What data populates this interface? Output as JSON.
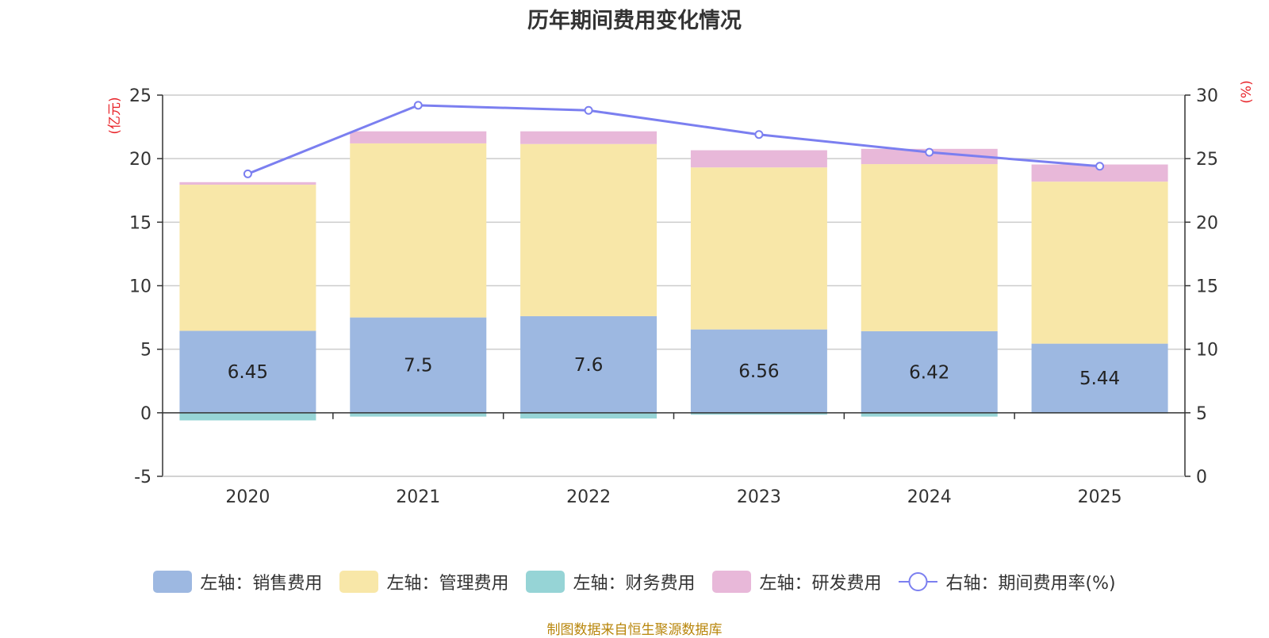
{
  "title": "历年期间费用变化情况",
  "footer": "制图数据来自恒生聚源数据库",
  "chart_data": {
    "type": "bar",
    "stacked": true,
    "categories": [
      "2020",
      "2021",
      "2022",
      "2023",
      "2024",
      "2025"
    ],
    "left_axis": {
      "label": "(亿元)",
      "ylim": [
        -5,
        25
      ],
      "ticks": [
        -5,
        0,
        5,
        10,
        15,
        20,
        25
      ]
    },
    "right_axis": {
      "label": "(%)",
      "ylim": [
        0,
        30
      ],
      "ticks": [
        0,
        5,
        10,
        15,
        20,
        25,
        30
      ]
    },
    "series": [
      {
        "name": "左轴：销售费用",
        "axis": "left",
        "color": "#9db8e1",
        "values": [
          6.45,
          7.5,
          7.6,
          6.56,
          6.42,
          5.44
        ],
        "show_labels": true
      },
      {
        "name": "左轴：管理费用",
        "axis": "left",
        "color": "#f8e7a8",
        "values": [
          11.5,
          13.7,
          13.55,
          12.75,
          13.15,
          12.75
        ]
      },
      {
        "name": "左轴：财务费用",
        "axis": "left",
        "color": "#96d4d6",
        "values": [
          -0.6,
          -0.3,
          -0.45,
          -0.15,
          -0.3,
          -0.05
        ]
      },
      {
        "name": "左轴：研发费用",
        "axis": "left",
        "color": "#e8b8d9",
        "values": [
          0.2,
          0.95,
          1.0,
          1.35,
          1.2,
          1.35
        ]
      },
      {
        "name": "右轴：期间费用率(%)",
        "axis": "right",
        "type": "line",
        "color": "#7b7ff0",
        "values": [
          23.8,
          29.2,
          28.8,
          26.9,
          25.5,
          24.4
        ]
      }
    ],
    "legend_position": "bottom"
  }
}
